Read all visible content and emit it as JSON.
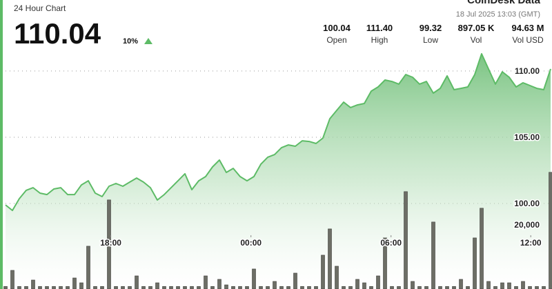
{
  "header": {
    "subtitle": "24 Hour Chart",
    "price": "110.04",
    "change": "10%",
    "brand": "CoinDesk Data",
    "timestamp": "18 Jul 2025 13:03 (GMT)",
    "stats": [
      {
        "value": "100.04",
        "label": "Open"
      },
      {
        "value": "111.40",
        "label": "High"
      },
      {
        "value": "99.32",
        "label": "Low"
      },
      {
        "value": "897.05 K",
        "label": "Vol"
      },
      {
        "value": "94.63 M",
        "label": "Vol USD"
      }
    ]
  },
  "chart_data": {
    "type": "line",
    "x": [
      0,
      1,
      2,
      3,
      4,
      5,
      6,
      7,
      8,
      9,
      10,
      11,
      12,
      13,
      14,
      15,
      16,
      17,
      18,
      19,
      20,
      21,
      22,
      23,
      24,
      25,
      26,
      27,
      28,
      29,
      30,
      31,
      32,
      33,
      34,
      35,
      36,
      37,
      38,
      39,
      40,
      41,
      42,
      43,
      44,
      45,
      46,
      47,
      48,
      49,
      50,
      51,
      52,
      53,
      54,
      55,
      56,
      57,
      58,
      59,
      60,
      61,
      62,
      63,
      64,
      65,
      66,
      67,
      68,
      69,
      70,
      71,
      72,
      73,
      74,
      75,
      76,
      77,
      78,
      79
    ],
    "xlim": [
      0,
      79
    ],
    "xticks": [
      {
        "value": 15.26,
        "label": "18:00"
      },
      {
        "value": 35.57,
        "label": "00:00"
      },
      {
        "value": 55.87,
        "label": "06:00"
      },
      {
        "value": 76.12,
        "label": "12:00"
      }
    ],
    "ylim": [
      93.54,
      115.36
    ],
    "yticks": [
      {
        "value": 100,
        "label": "100.00"
      },
      {
        "value": 105,
        "label": "105.00"
      },
      {
        "value": 110,
        "label": "110.00"
      }
    ],
    "y2lim": [
      0,
      90000
    ],
    "y2ticks": [
      {
        "value": 20000,
        "label": "20,000"
      }
    ],
    "grid": true,
    "series": [
      {
        "color": "#5dbb66",
        "values": [
          99.89,
          99.47,
          100.36,
          100.99,
          101.19,
          100.78,
          100.67,
          101.09,
          101.19,
          100.67,
          100.67,
          101.4,
          101.71,
          100.78,
          100.52,
          101.3,
          101.51,
          101.3,
          101.61,
          101.92,
          101.61,
          101.19,
          100.26,
          100.67,
          101.19,
          101.71,
          102.24,
          101.04,
          101.71,
          102.03,
          102.76,
          103.28,
          102.34,
          102.65,
          102.03,
          101.71,
          102.03,
          102.96,
          103.49,
          103.69,
          104.21,
          104.42,
          104.32,
          104.73,
          104.68,
          104.53,
          104.94,
          106.4,
          107.03,
          107.65,
          107.24,
          107.44,
          107.55,
          108.48,
          108.8,
          109.32,
          109.21,
          109.01,
          109.73,
          109.53,
          109.01,
          109.21,
          108.33,
          108.69,
          109.63,
          108.59,
          108.69,
          108.8,
          109.73,
          111.3,
          110.15,
          109.01,
          109.94,
          109.53,
          108.8,
          109.11,
          108.9,
          108.69,
          108.59,
          110.15
        ]
      },
      {
        "color": "#6d6e66",
        "axis": "y2",
        "values": [
          800,
          5806,
          800,
          800,
          2796,
          800,
          800,
          800,
          800,
          800,
          3441,
          1935,
          13333,
          800,
          800,
          27742,
          800,
          800,
          800,
          4086,
          800,
          800,
          1935,
          800,
          800,
          800,
          800,
          800,
          800,
          4086,
          800,
          3011,
          1290,
          800,
          800,
          800,
          6237,
          800,
          800,
          2366,
          800,
          800,
          4946,
          800,
          800,
          800,
          10538,
          18710,
          7097,
          800,
          800,
          3011,
          1935,
          800,
          4086,
          15914,
          800,
          800,
          30323,
          2366,
          800,
          800,
          20860,
          800,
          800,
          800,
          3011,
          800,
          15914,
          25161,
          2366,
          800,
          1935,
          1935,
          800,
          2366,
          800,
          800,
          800,
          36344
        ]
      }
    ]
  }
}
